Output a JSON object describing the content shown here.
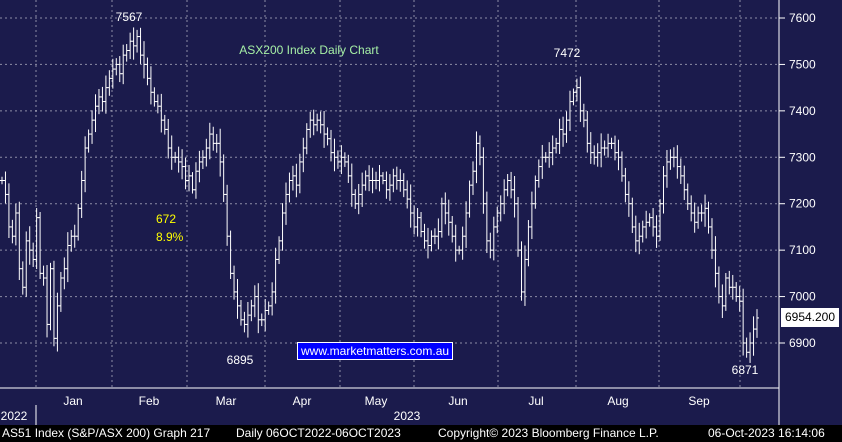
{
  "chart_data": {
    "type": "ohlc",
    "title": "ASX200 Index Daily Chart",
    "y_axis": {
      "ticks": [
        "7600",
        "7500",
        "7400",
        "7300",
        "7200",
        "7100",
        "7000",
        "6900"
      ],
      "range": [
        6820,
        7650
      ],
      "side": "right"
    },
    "x_axis": {
      "months": [
        "Jan",
        "Feb",
        "Mar",
        "Apr",
        "May",
        "Jun",
        "Jul",
        "Aug",
        "Sep"
      ],
      "years": [
        "2022",
        "2023"
      ]
    },
    "annotations": [
      {
        "text": "7567",
        "value": 7567,
        "color": "#ffffff"
      },
      {
        "text": "7472",
        "value": 7472,
        "color": "#ffffff"
      },
      {
        "text": "6895",
        "value": 6895,
        "color": "#ffffff"
      },
      {
        "text": "6871",
        "value": 6871,
        "color": "#ffffff"
      },
      {
        "text": "672",
        "color": "#ffff00"
      },
      {
        "text": "8.9%",
        "color": "#ffff00"
      }
    ],
    "last_value": "6954.200",
    "grid": true,
    "series": [
      {
        "color": "#ffffff",
        "values": [
          7250,
          7220,
          7150,
          7130,
          7180,
          7060,
          7020,
          7120,
          7100,
          7080,
          7170,
          7050,
          7040,
          6940,
          7060,
          6910,
          6980,
          7040,
          7060,
          7110,
          7130,
          7130,
          7190,
          7250,
          7320,
          7350,
          7380,
          7410,
          7430,
          7420,
          7450,
          7470,
          7490,
          7500,
          7480,
          7520,
          7530,
          7550,
          7540,
          7560,
          7520,
          7500,
          7470,
          7440,
          7420,
          7410,
          7380,
          7360,
          7320,
          7300,
          7300,
          7290,
          7280,
          7250,
          7260,
          7230,
          7270,
          7290,
          7300,
          7320,
          7350,
          7330,
          7330,
          7290,
          7220,
          7130,
          7050,
          7010,
          6980,
          6950,
          6940,
          6960,
          6980,
          7000,
          6950,
          6950,
          6970,
          6980,
          7010,
          7080,
          7120,
          7180,
          7220,
          7250,
          7260,
          7240,
          7290,
          7320,
          7360,
          7380,
          7370,
          7380,
          7370,
          7350,
          7340,
          7310,
          7300,
          7290,
          7300,
          7290,
          7260,
          7220,
          7200,
          7220,
          7240,
          7260,
          7250,
          7250,
          7250,
          7260,
          7250,
          7230,
          7240,
          7260,
          7250,
          7250,
          7230,
          7210,
          7180,
          7150,
          7170,
          7140,
          7120,
          7110,
          7130,
          7130,
          7140,
          7200,
          7180,
          7160,
          7130,
          7100,
          7100,
          7130,
          7180,
          7240,
          7270,
          7330,
          7300,
          7200,
          7120,
          7100,
          7150,
          7180,
          7200,
          7230,
          7250,
          7230,
          7200,
          7100,
          7010,
          7080,
          7150,
          7200,
          7250,
          7280,
          7300,
          7300,
          7310,
          7320,
          7330,
          7360,
          7350,
          7380,
          7420,
          7440,
          7450,
          7400,
          7380,
          7330,
          7310,
          7300,
          7310,
          7320,
          7320,
          7330,
          7330,
          7310,
          7300,
          7260,
          7220,
          7200,
          7150,
          7120,
          7130,
          7150,
          7160,
          7170,
          7150,
          7130,
          7200,
          7260,
          7290,
          7300,
          7300,
          7280,
          7260,
          7230,
          7200,
          7180,
          7160,
          7180,
          7180,
          7190,
          7150,
          7100,
          7050,
          7000,
          6980,
          7040,
          7020,
          7020,
          7000,
          6990,
          6900,
          6880,
          6900,
          6930,
          6954
        ]
      }
    ]
  }
}
